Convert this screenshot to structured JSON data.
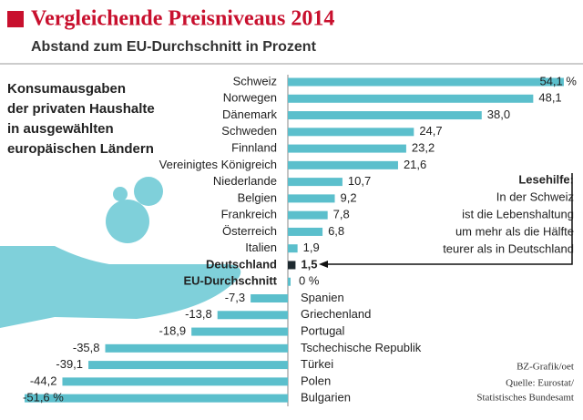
{
  "chart_data": {
    "type": "bar",
    "title": "Vergleichende Preisniveaus 2014",
    "subtitle": "Abstand zum EU-Durchschnitt in Prozent",
    "description": [
      "Konsumausgaben",
      "der privaten Haushalte",
      "in ausgewählten",
      "europäischen Ländern"
    ],
    "categories": [
      "Schweiz",
      "Norwegen",
      "Dänemark",
      "Schweden",
      "Finnland",
      "Vereinigtes Königreich",
      "Niederlande",
      "Belgien",
      "Frankreich",
      "Österreich",
      "Italien",
      "Deutschland",
      "EU-Durchschnitt",
      "Spanien",
      "Griechenland",
      "Portugal",
      "Tschechische Republik",
      "Türkei",
      "Polen",
      "Bulgarien"
    ],
    "values": [
      54.1,
      48.1,
      38.0,
      24.7,
      23.2,
      21.6,
      10.7,
      9.2,
      7.8,
      6.8,
      1.9,
      1.5,
      0,
      -7.3,
      -13.8,
      -18.9,
      -35.8,
      -39.1,
      -44.2,
      -51.6
    ],
    "value_labels": [
      "54,1 %",
      "48,1",
      "38,0",
      "24,7",
      "23,2",
      "21,6",
      "10,7",
      "9,2",
      "7,8",
      "6,8",
      "1,9",
      "1,5",
      "0 %",
      "-7,3",
      "-13,8",
      "-18,9",
      "-35,8",
      "-39,1",
      "-44,2",
      "-51,6 %"
    ],
    "highlight": [
      11,
      12
    ],
    "color": "#5bbfcc",
    "highlight_color": "#1e2a30",
    "xlim": [
      -55,
      55
    ],
    "annotation": {
      "title": "Lesehilfe:",
      "lines": [
        "In der Schweiz",
        "ist die Lebenshaltung",
        "um mehr als die Hälfte",
        "teurer als in Deutschland"
      ]
    },
    "credit": "BZ-Grafik/oet",
    "source": [
      "Quelle: Eurostat/",
      "Statistisches Bundesamt"
    ]
  }
}
